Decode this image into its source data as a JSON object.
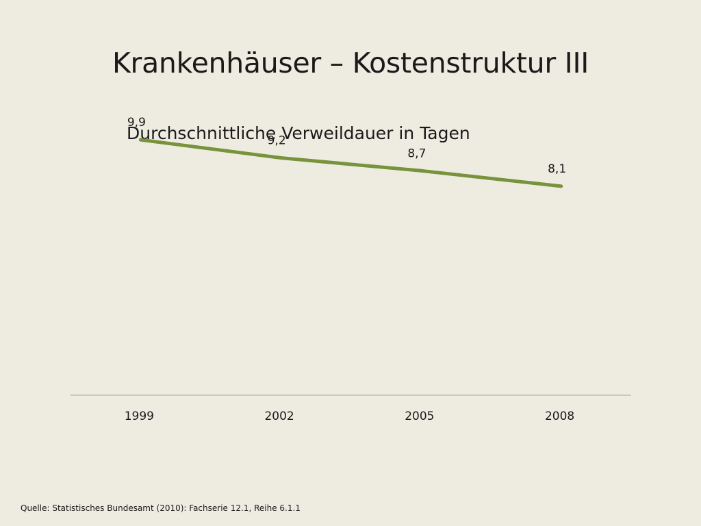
{
  "slide": {
    "title": "Krankenhäuser – Kostenstruktur III",
    "source": "Quelle: Statistisches Bundesamt (2010): Fachserie 12.1, Reihe 6.1.1"
  },
  "chart_data": {
    "type": "line",
    "title": "Durchschnittliche Verweildauer in Tagen",
    "xlabel": "",
    "ylabel": "",
    "categories": [
      "1999",
      "2002",
      "2005",
      "2008"
    ],
    "series": [
      {
        "values": [
          9.9,
          9.2,
          8.7,
          8.1
        ],
        "labels": [
          "9,9",
          "9,2",
          "8,7",
          "8,1"
        ],
        "color": "#77933C"
      }
    ],
    "ylim": [
      0,
      12
    ],
    "grid": false,
    "legend": "none",
    "axis_color": "#A6A6A6"
  }
}
